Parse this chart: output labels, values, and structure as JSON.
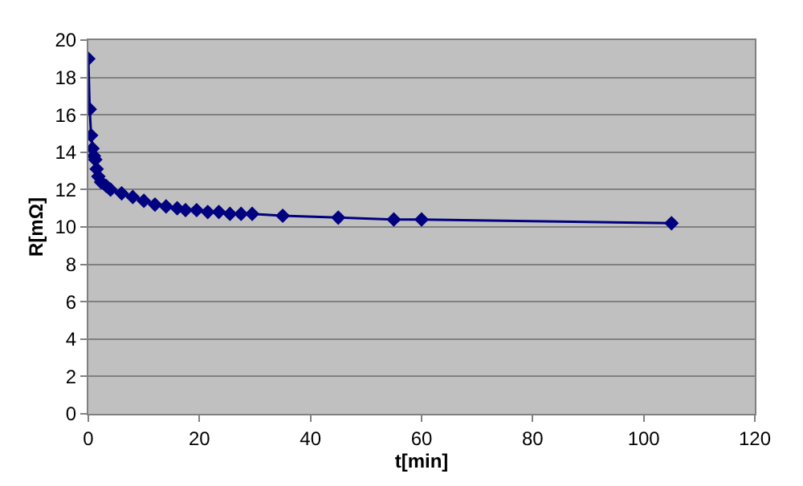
{
  "chart_data": {
    "type": "line",
    "xlabel": "t[min]",
    "ylabel": "R[mΩ]",
    "x": [
      0,
      0.25,
      0.5,
      0.75,
      1,
      1.25,
      1.5,
      1.8,
      2.3,
      3.2,
      4,
      6,
      8,
      10,
      12,
      14,
      16,
      17.5,
      19.5,
      21.5,
      23.5,
      25.5,
      27.5,
      29.5,
      35,
      45,
      55,
      60,
      105
    ],
    "series": [
      {
        "color": "#000080",
        "values": [
          19.0,
          16.3,
          14.9,
          14.2,
          13.8,
          13.6,
          13.1,
          12.7,
          12.4,
          12.2,
          12.0,
          11.8,
          11.6,
          11.4,
          11.2,
          11.1,
          11.0,
          10.9,
          10.9,
          10.8,
          10.8,
          10.7,
          10.7,
          10.7,
          10.6,
          10.5,
          10.4,
          10.4,
          10.2
        ]
      }
    ],
    "xlim": [
      0,
      120
    ],
    "xticks": [
      0,
      20,
      40,
      60,
      80,
      100,
      120
    ],
    "ylim": [
      0,
      20
    ],
    "yticks": [
      0,
      2,
      4,
      6,
      8,
      10,
      12,
      14,
      16,
      18,
      20
    ],
    "grid": "y",
    "marker": "diamond",
    "line_style": "solid"
  }
}
